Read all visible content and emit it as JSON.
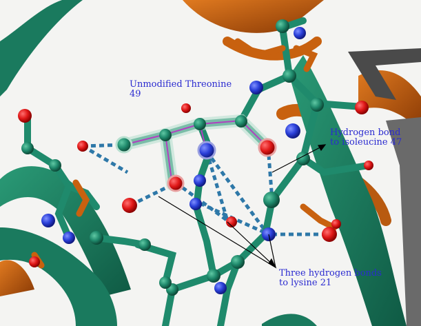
{
  "annotations": {
    "threonine": "Unmodified Threonine\n49",
    "isoleucine": "Hydrogen bond\nto isoleucine 47",
    "lysine": "Three hydrogen bonds\nto lysine 21"
  },
  "colors": {
    "carbon": "#1f8a6c",
    "ribbon_green": "#1a7a5e",
    "ribbon_orange": "#c8610f",
    "oxygen": "#e01818",
    "nitrogen": "#2a3fd8",
    "hbond": "#2e78a8",
    "label_text": "#2a2ad0",
    "highlight_bond": "#b040c0"
  }
}
